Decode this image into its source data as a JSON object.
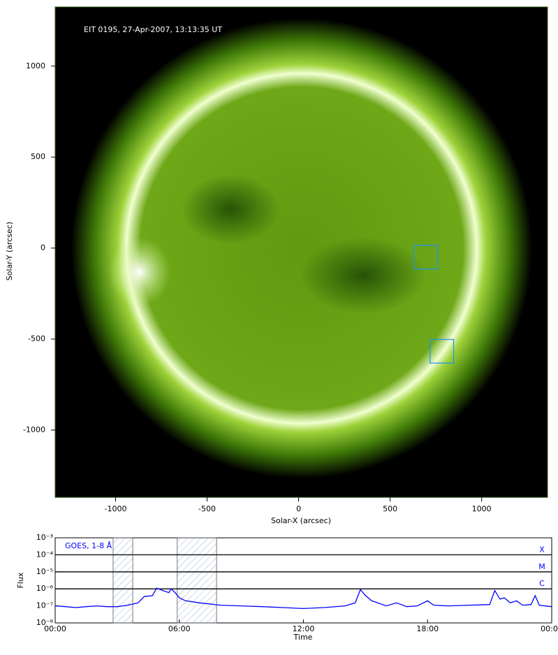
{
  "chart_data": [
    {
      "type": "image",
      "annotation": "EIT 0195, 27-Apr-2007, 13:13:35 UT",
      "xlabel": "Solar-X (arcsec)",
      "ylabel": "Solar-Y (arcsec)",
      "xlim": [
        -1330,
        1360
      ],
      "ylim": [
        -1370,
        1325
      ],
      "xticks": [
        -1000,
        -500,
        0,
        500,
        1000
      ],
      "yticks": [
        -1000,
        -500,
        0,
        500,
        1000
      ],
      "boxes": [
        {
          "x": [
            630,
            760
          ],
          "y": [
            -115,
            15
          ]
        },
        {
          "x": [
            718,
            847
          ],
          "y": [
            -632,
            -502
          ]
        }
      ],
      "box_color": "#1e90ff"
    },
    {
      "type": "line",
      "ylabel": "Flux",
      "xlabel": "Time",
      "log_y": true,
      "xlim": [
        0,
        24
      ],
      "ylim": [
        1e-08,
        0.001
      ],
      "xticks": [
        {
          "value": 0,
          "label": "00:00"
        },
        {
          "value": 6,
          "label": "06:00"
        },
        {
          "value": 12,
          "label": "12:00"
        },
        {
          "value": 18,
          "label": "18:00"
        },
        {
          "value": 24,
          "label": "00:00"
        }
      ],
      "yticks": [
        {
          "value": 1e-08,
          "label": "10⁻⁸"
        },
        {
          "value": 1e-07,
          "label": "10⁻⁷"
        },
        {
          "value": 1e-06,
          "label": "10⁻⁶"
        },
        {
          "value": 1e-05,
          "label": "10⁻⁵"
        },
        {
          "value": 0.0001,
          "label": "10⁻⁴"
        },
        {
          "value": 0.001,
          "label": "10⁻³"
        }
      ],
      "flare_levels": [
        {
          "value": 0.0001,
          "label": "X"
        },
        {
          "value": 1e-05,
          "label": "M"
        },
        {
          "value": 1e-06,
          "label": "C"
        }
      ],
      "shaded_ranges": [
        [
          2.8,
          3.75
        ],
        [
          5.9,
          7.8
        ]
      ],
      "x": [
        0,
        0.5,
        1,
        1.5,
        2,
        2.5,
        3,
        3.5,
        4,
        4.3,
        4.7,
        4.9,
        5.2,
        5.5,
        5.6,
        5.8,
        6,
        6.3,
        7,
        8,
        9,
        10,
        11,
        12,
        13,
        14,
        14.5,
        14.75,
        15,
        15.3,
        16,
        16.5,
        17,
        17.5,
        18,
        18.3,
        19,
        20,
        21,
        21.25,
        21.5,
        21.7,
        22,
        22.3,
        22.6,
        23,
        23.2,
        23.4,
        24
      ],
      "series": [
        {
          "name": "GOES, 1-8 Å",
          "color": "#0000ff",
          "values": [
            1e-07,
            9e-08,
            8e-08,
            9e-08,
            1e-07,
            9e-08,
            9e-08,
            1.1e-07,
            1.5e-07,
            3.5e-07,
            4e-07,
            1.1e-06,
            8e-07,
            6e-07,
            1e-06,
            6e-07,
            3e-07,
            2e-07,
            1.5e-07,
            1.1e-07,
            1e-07,
            9e-08,
            8e-08,
            7e-08,
            8e-08,
            1e-07,
            1.5e-07,
            9e-07,
            4e-07,
            2e-07,
            1e-07,
            1.5e-07,
            9e-08,
            1e-07,
            2e-07,
            1.1e-07,
            1e-07,
            1.1e-07,
            1.2e-07,
            8e-07,
            2.5e-07,
            3e-07,
            1.5e-07,
            2e-07,
            1.1e-07,
            1.2e-07,
            4e-07,
            1.1e-07,
            9e-08
          ]
        }
      ]
    }
  ]
}
